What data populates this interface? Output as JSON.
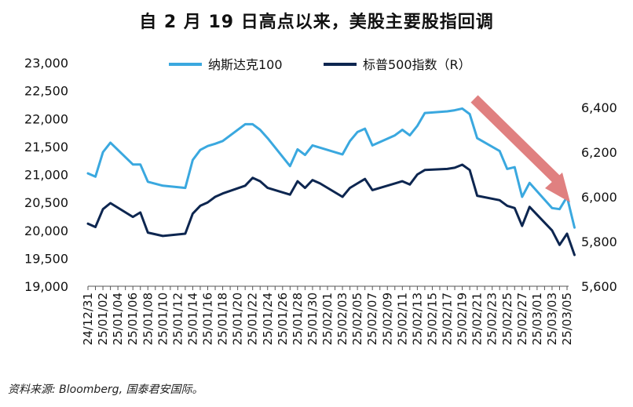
{
  "title": "自 2 月 19 日高点以来，美股主要股指回调",
  "source": "资料来源: Bloomberg, 国泰君安国际。",
  "chart_data": {
    "type": "line",
    "title": "自 2 月 19 日高点以来，美股主要股指回调",
    "legend_position": "top",
    "grid": false,
    "y_left": {
      "ticks": [
        "19,000",
        "19,500",
        "20,000",
        "20,500",
        "21,000",
        "21,500",
        "22,000",
        "22,500",
        "23,000"
      ],
      "range": [
        19000,
        23000
      ]
    },
    "y_right": {
      "ticks": [
        "5,600",
        "5,800",
        "6,000",
        "6,200",
        "6,400"
      ],
      "range": [
        5600,
        6600
      ]
    },
    "x_tick_labels": [
      "24/12/31",
      "25/01/02",
      "25/01/04",
      "25/01/06",
      "25/01/08",
      "25/01/10",
      "25/01/12",
      "25/01/14",
      "25/01/16",
      "25/01/18",
      "25/01/20",
      "25/01/22",
      "25/01/24",
      "25/01/26",
      "25/01/28",
      "25/01/30",
      "25/02/01",
      "25/02/03",
      "25/02/05",
      "25/02/07",
      "25/02/09",
      "25/02/11",
      "25/02/13",
      "25/02/15",
      "25/02/17",
      "25/02/19",
      "25/02/21",
      "25/02/23",
      "25/02/25",
      "25/02/27",
      "25/03/01",
      "25/03/03",
      "25/03/05"
    ],
    "series": [
      {
        "name": "纳斯达克100",
        "axis": "left",
        "color": "#3aa8df",
        "points": [
          [
            "24/12/31",
            21020
          ],
          [
            "25/01/01",
            20960
          ],
          [
            "25/01/02",
            21400
          ],
          [
            "25/01/03",
            21570
          ],
          [
            "25/01/06",
            21180
          ],
          [
            "25/01/07",
            21180
          ],
          [
            "25/01/08",
            20870
          ],
          [
            "25/01/10",
            20800
          ],
          [
            "25/01/13",
            20760
          ],
          [
            "25/01/14",
            21260
          ],
          [
            "25/01/15",
            21440
          ],
          [
            "25/01/16",
            21510
          ],
          [
            "25/01/17",
            21550
          ],
          [
            "25/01/18",
            21600
          ],
          [
            "25/01/21",
            21900
          ],
          [
            "25/01/22",
            21900
          ],
          [
            "25/01/23",
            21800
          ],
          [
            "25/01/24",
            21650
          ],
          [
            "25/01/27",
            21150
          ],
          [
            "25/01/28",
            21450
          ],
          [
            "25/01/29",
            21350
          ],
          [
            "25/01/30",
            21520
          ],
          [
            "25/01/31",
            21480
          ],
          [
            "25/02/03",
            21360
          ],
          [
            "25/02/04",
            21600
          ],
          [
            "25/02/05",
            21760
          ],
          [
            "25/02/06",
            21820
          ],
          [
            "25/02/07",
            21520
          ],
          [
            "25/02/10",
            21700
          ],
          [
            "25/02/11",
            21800
          ],
          [
            "25/02/12",
            21700
          ],
          [
            "25/02/13",
            21870
          ],
          [
            "25/02/14",
            22100
          ],
          [
            "25/02/17",
            22130
          ],
          [
            "25/02/18",
            22150
          ],
          [
            "25/02/19",
            22180
          ],
          [
            "25/02/20",
            22080
          ],
          [
            "25/02/21",
            21650
          ],
          [
            "25/02/24",
            21420
          ],
          [
            "25/02/25",
            21100
          ],
          [
            "25/02/26",
            21130
          ],
          [
            "25/02/27",
            20600
          ],
          [
            "25/02/28",
            20850
          ],
          [
            "25/03/03",
            20400
          ],
          [
            "25/03/04",
            20380
          ],
          [
            "25/03/05",
            20600
          ],
          [
            "25/03/06",
            20050
          ]
        ]
      },
      {
        "name": "标普500指数（R）",
        "axis": "right",
        "color": "#0d2650",
        "points": [
          [
            "24/12/31",
            5880
          ],
          [
            "25/01/01",
            5865
          ],
          [
            "25/01/02",
            5945
          ],
          [
            "25/01/03",
            5972
          ],
          [
            "25/01/06",
            5910
          ],
          [
            "25/01/07",
            5930
          ],
          [
            "25/01/08",
            5840
          ],
          [
            "25/01/10",
            5825
          ],
          [
            "25/01/13",
            5835
          ],
          [
            "25/01/14",
            5925
          ],
          [
            "25/01/15",
            5960
          ],
          [
            "25/01/16",
            5975
          ],
          [
            "25/01/17",
            6000
          ],
          [
            "25/01/18",
            6015
          ],
          [
            "25/01/21",
            6050
          ],
          [
            "25/01/22",
            6085
          ],
          [
            "25/01/23",
            6070
          ],
          [
            "25/01/24",
            6040
          ],
          [
            "25/01/27",
            6010
          ],
          [
            "25/01/28",
            6070
          ],
          [
            "25/01/29",
            6040
          ],
          [
            "25/01/30",
            6075
          ],
          [
            "25/01/31",
            6060
          ],
          [
            "25/02/03",
            6000
          ],
          [
            "25/02/04",
            6040
          ],
          [
            "25/02/05",
            6060
          ],
          [
            "25/02/06",
            6080
          ],
          [
            "25/02/07",
            6030
          ],
          [
            "25/02/10",
            6060
          ],
          [
            "25/02/11",
            6070
          ],
          [
            "25/02/12",
            6055
          ],
          [
            "25/02/13",
            6100
          ],
          [
            "25/02/14",
            6120
          ],
          [
            "25/02/17",
            6125
          ],
          [
            "25/02/18",
            6130
          ],
          [
            "25/02/19",
            6144
          ],
          [
            "25/02/20",
            6120
          ],
          [
            "25/02/21",
            6005
          ],
          [
            "25/02/24",
            5985
          ],
          [
            "25/02/25",
            5960
          ],
          [
            "25/02/26",
            5950
          ],
          [
            "25/02/27",
            5870
          ],
          [
            "25/02/28",
            5955
          ],
          [
            "25/03/03",
            5850
          ],
          [
            "25/03/04",
            5785
          ],
          [
            "25/03/05",
            5835
          ],
          [
            "25/03/06",
            5740
          ]
        ]
      }
    ]
  }
}
